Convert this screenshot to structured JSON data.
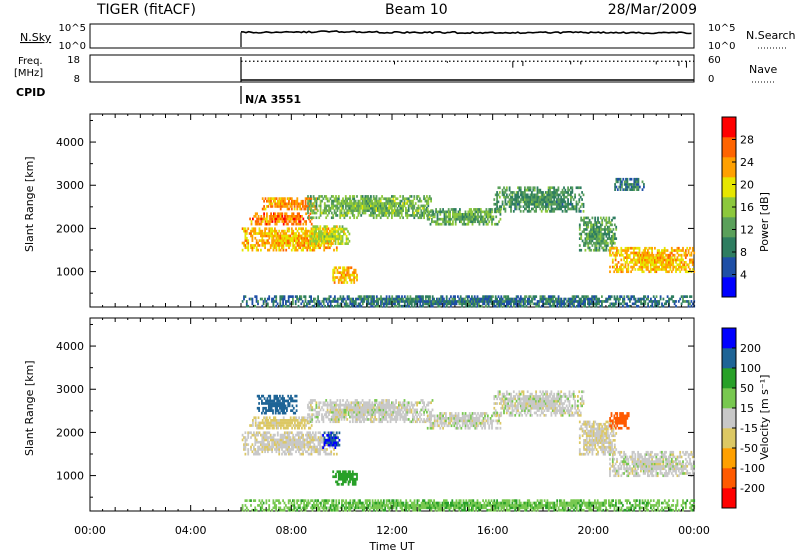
{
  "header": {
    "station": "TIGER (fitACF)",
    "beam": "Beam 10",
    "date": "28/Mar/2009"
  },
  "colors": {
    "trace": "#000000",
    "data_missing": "#ffffff"
  },
  "chart_data": [
    {
      "type": "line",
      "panel": "noise-search",
      "left_label": "N.Sky",
      "right_label": "N.Search",
      "left_ticks": [
        "10^5",
        "10^0"
      ],
      "right_ticks": [
        "10^5",
        "10^0"
      ],
      "x": [
        6,
        8,
        10,
        12,
        14,
        16,
        18,
        20,
        22,
        24
      ],
      "values": [
        3.3,
        3.4,
        3.5,
        3.3,
        3.3,
        3.2,
        3.3,
        3.3,
        3.2,
        3.2
      ],
      "ylim": [
        0,
        5
      ]
    },
    {
      "type": "line",
      "panel": "frequency-nave",
      "left_label": "Freq. [MHz]",
      "right_label": "Nave",
      "left_ticks": [
        "18",
        "8"
      ],
      "right_ticks": [
        "60",
        "0"
      ],
      "freq_mhz": 8,
      "nave_x": [
        6,
        12,
        16,
        20,
        23.9
      ],
      "nave_values": [
        45,
        45,
        45,
        45,
        45
      ]
    },
    {
      "type": "text",
      "panel": "cpid",
      "label": "CPID",
      "value": "N/A 3551",
      "start_hour": 6
    },
    {
      "type": "heatmap",
      "panel": "power",
      "ylabel": "Slant Range [km]",
      "colorbar_label": "Power [dB]",
      "colorbar_ticks": [
        "28",
        "24",
        "20",
        "16",
        "12",
        "8",
        "4"
      ],
      "colorbar_values": [
        28,
        24,
        20,
        16,
        12,
        8,
        4
      ],
      "colorbar_range": [
        0,
        32
      ],
      "colorbar_colors": [
        "#0000ff",
        "#1e4fa6",
        "#2e7d60",
        "#5aa05a",
        "#8cc83c",
        "#e6e600",
        "#ffa000",
        "#ff6400",
        "#ff0000"
      ],
      "xlim": [
        0,
        24
      ],
      "ylim": [
        180,
        4650
      ],
      "yticks": [
        1000,
        2000,
        3000,
        4000
      ],
      "data_start_hour": 6,
      "blobs": [
        {
          "t": [
            6.0,
            9.8
          ],
          "r": [
            1500,
            2050
          ],
          "v": 22
        },
        {
          "t": [
            6.3,
            8.8
          ],
          "r": [
            2100,
            2400
          ],
          "v": 25
        },
        {
          "t": [
            6.8,
            9.0
          ],
          "r": [
            2450,
            2750
          ],
          "v": 24
        },
        {
          "t": [
            8.7,
            10.3
          ],
          "r": [
            1650,
            2100
          ],
          "v": 18
        },
        {
          "t": [
            9.6,
            10.6
          ],
          "r": [
            750,
            1150
          ],
          "v": 22
        },
        {
          "t": [
            8.6,
            13.6
          ],
          "r": [
            2250,
            2800
          ],
          "v": 14
        },
        {
          "t": [
            13.3,
            16.3
          ],
          "r": [
            2100,
            2500
          ],
          "v": 13
        },
        {
          "t": [
            16.0,
            19.6
          ],
          "r": [
            2400,
            3000
          ],
          "v": 11
        },
        {
          "t": [
            19.4,
            20.9
          ],
          "r": [
            1500,
            2300
          ],
          "v": 12
        },
        {
          "t": [
            20.6,
            24.0
          ],
          "r": [
            1000,
            1600
          ],
          "v": 22
        },
        {
          "t": [
            20.8,
            22.0
          ],
          "r": [
            2900,
            3200
          ],
          "v": 8
        },
        {
          "t": [
            6.0,
            24.0
          ],
          "r": [
            200,
            480
          ],
          "v": 8
        }
      ]
    },
    {
      "type": "heatmap",
      "panel": "velocity",
      "ylabel": "Slant Range [km]",
      "colorbar_label": "Velocity [m s⁻¹]",
      "colorbar_ticks": [
        "200",
        "100",
        "50",
        "15",
        "-15",
        "-50",
        "-100",
        "-200"
      ],
      "colorbar_values": [
        200,
        100,
        50,
        15,
        -15,
        -50,
        -100,
        -200
      ],
      "colorbar_colors": [
        "#ff0000",
        "#ff5a00",
        "#ffa000",
        "#dcc864",
        "#c8c8c8",
        "#78c850",
        "#28a028",
        "#1e6496",
        "#0000ff"
      ],
      "xlim": [
        0,
        24
      ],
      "ylim": [
        180,
        4650
      ],
      "yticks": [
        1000,
        2000,
        3000,
        4000
      ],
      "xticks": [
        "00:00",
        "04:00",
        "08:00",
        "12:00",
        "16:00",
        "20:00",
        "00:00"
      ],
      "xtick_hours": [
        0,
        4,
        8,
        12,
        16,
        20,
        24
      ],
      "xlabel": "Time UT",
      "blobs": [
        {
          "t": [
            6.0,
            9.8
          ],
          "r": [
            1500,
            2050
          ],
          "v": -5
        },
        {
          "t": [
            6.3,
            8.8
          ],
          "r": [
            2100,
            2400
          ],
          "v": -30
        },
        {
          "t": [
            6.6,
            8.2
          ],
          "r": [
            2450,
            2900
          ],
          "v": 180
        },
        {
          "t": [
            8.6,
            13.6
          ],
          "r": [
            2250,
            2800
          ],
          "v": 0
        },
        {
          "t": [
            13.3,
            16.3
          ],
          "r": [
            2100,
            2500
          ],
          "v": 0
        },
        {
          "t": [
            16.0,
            19.6
          ],
          "r": [
            2400,
            3000
          ],
          "v": 0
        },
        {
          "t": [
            19.4,
            20.9
          ],
          "r": [
            1500,
            2300
          ],
          "v": -10
        },
        {
          "t": [
            20.6,
            24.0
          ],
          "r": [
            1000,
            1600
          ],
          "v": 0
        },
        {
          "t": [
            20.6,
            21.4
          ],
          "r": [
            2100,
            2500
          ],
          "v": -180
        },
        {
          "t": [
            9.6,
            10.6
          ],
          "r": [
            800,
            1150
          ],
          "v": 70
        },
        {
          "t": [
            9.2,
            9.9
          ],
          "r": [
            1650,
            2050
          ],
          "v": 200
        },
        {
          "t": [
            6.0,
            24.0
          ],
          "r": [
            200,
            480
          ],
          "v": 40
        }
      ]
    }
  ]
}
